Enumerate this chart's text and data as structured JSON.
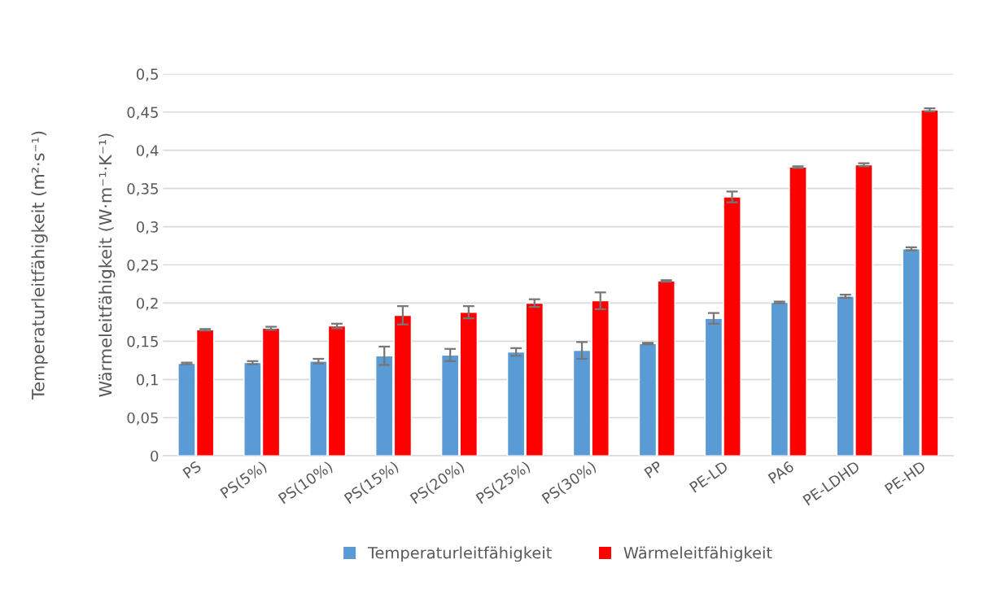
{
  "chart_data": {
    "type": "bar",
    "ylabel": "Wärmeleitfähigkeit (W·m⁻¹·K⁻¹)",
    "y2label": "Temperaturleitfähigkeit (m²·s⁻¹)",
    "categories": [
      "PS",
      "PS(5%)",
      "PS(10%)",
      "PS(15%)",
      "PS(20%)",
      "PS(25%)",
      "PS(30%)",
      "PP",
      "PE-LD",
      "PA6",
      "PE-LDHD",
      "PE-HD"
    ],
    "series": [
      {
        "name": "Temperaturleitfähigkeit",
        "color": "#5b9bd5",
        "values": [
          0.121,
          0.122,
          0.124,
          0.131,
          0.132,
          0.136,
          0.138,
          0.147,
          0.18,
          0.201,
          0.209,
          0.271
        ],
        "errors": [
          0.001,
          0.002,
          0.003,
          0.012,
          0.008,
          0.005,
          0.011,
          0.001,
          0.007,
          0.001,
          0.002,
          0.002
        ]
      },
      {
        "name": "Wärmeleitfähigkeit",
        "color": "#ff0000",
        "values": [
          0.165,
          0.167,
          0.17,
          0.184,
          0.188,
          0.2,
          0.203,
          0.229,
          0.339,
          0.378,
          0.381,
          0.453
        ],
        "errors": [
          0.001,
          0.002,
          0.003,
          0.012,
          0.008,
          0.005,
          0.011,
          0.001,
          0.007,
          0.001,
          0.002,
          0.002
        ]
      }
    ],
    "ylim": [
      0,
      0.5
    ],
    "yticks": [
      {
        "value": 0,
        "label": "0"
      },
      {
        "value": 0.05,
        "label": "0,05"
      },
      {
        "value": 0.1,
        "label": "0,1"
      },
      {
        "value": 0.15,
        "label": "0,15"
      },
      {
        "value": 0.2,
        "label": "0,2"
      },
      {
        "value": 0.25,
        "label": "0,25"
      },
      {
        "value": 0.3,
        "label": "0,3"
      },
      {
        "value": 0.35,
        "label": "0,35"
      },
      {
        "value": 0.4,
        "label": "0,4"
      },
      {
        "value": 0.45,
        "label": "0,45"
      },
      {
        "value": 0.5,
        "label": "0,5"
      }
    ],
    "grid": "y",
    "legend": "bottom"
  }
}
